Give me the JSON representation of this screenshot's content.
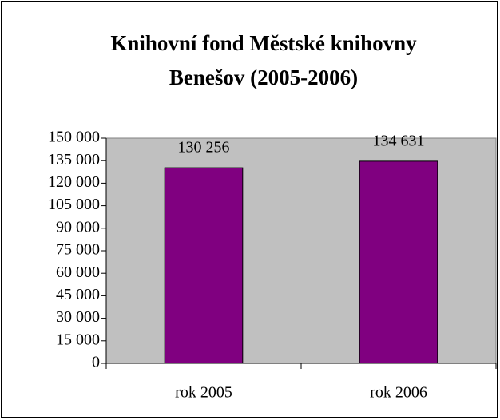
{
  "chart_data": {
    "type": "bar",
    "title": [
      "Knihovní fond Městské knihovny",
      "Benešov (2005-2006)"
    ],
    "categories": [
      "rok 2005",
      "rok 2006"
    ],
    "values": [
      130256,
      134631
    ],
    "value_labels": [
      "130 256",
      "134 631"
    ],
    "color": "#800080",
    "ylim": [
      0,
      150000
    ],
    "yticks": [
      0,
      {
        "value": 15000,
        "label": "15 000"
      },
      {
        "value": 30000,
        "label": "30 000"
      },
      {
        "value": 45000,
        "label": "45 000"
      },
      {
        "value": 60000,
        "label": "60 000"
      },
      {
        "value": 75000,
        "label": "75 000"
      },
      {
        "value": 90000,
        "label": "90 000"
      },
      {
        "value": 105000,
        "label": "105 000"
      },
      {
        "value": 120000,
        "label": "120 000"
      },
      {
        "value": 135000,
        "label": "135 000"
      },
      {
        "value": 150000,
        "label": "150 000"
      }
    ],
    "grid": false
  }
}
